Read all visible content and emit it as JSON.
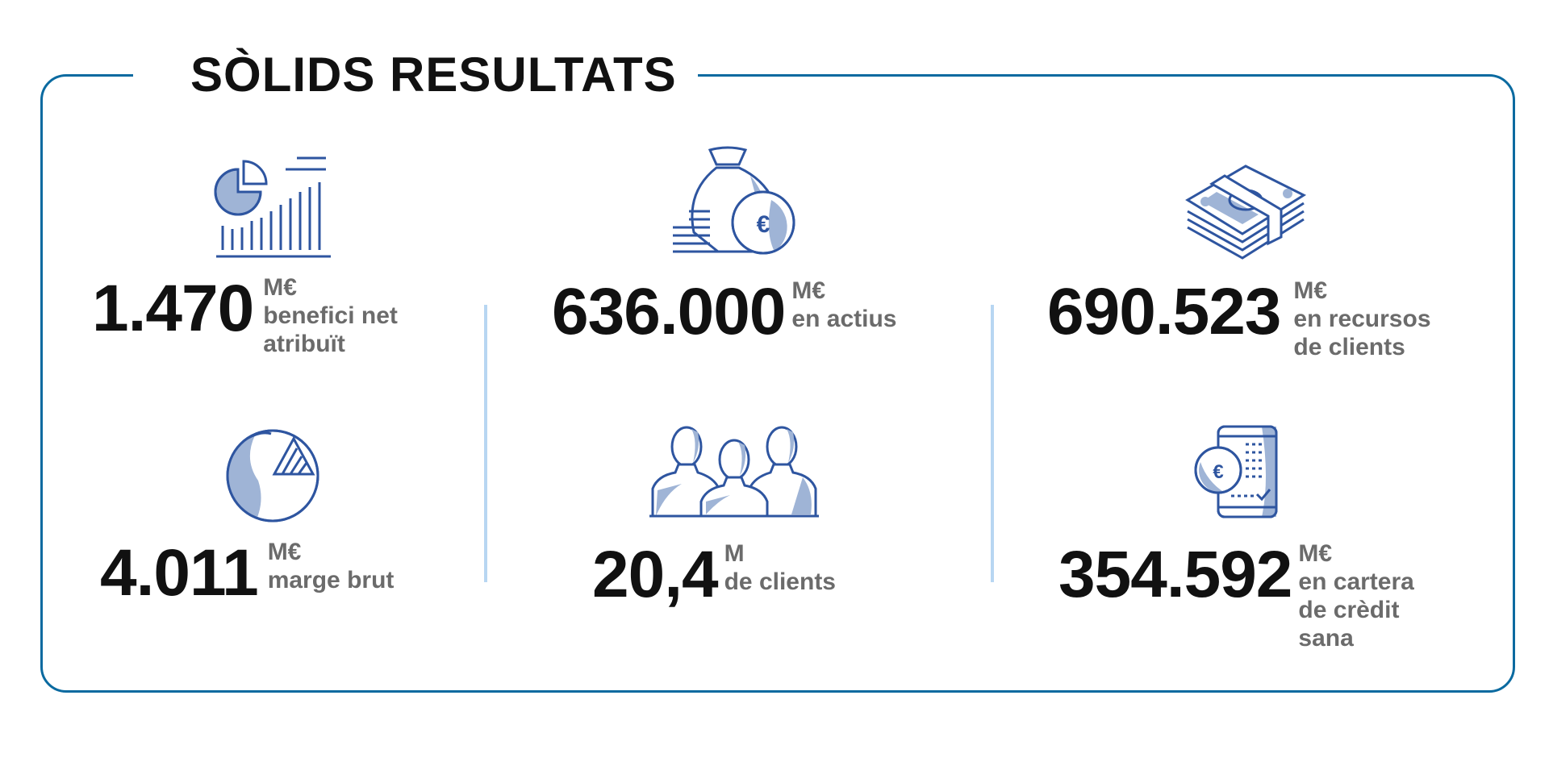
{
  "title": "SÒLIDS RESULTATS",
  "colors": {
    "border": "#0a6aa0",
    "icon_stroke": "#2e55a0",
    "icon_fill": "#9fb4d6",
    "divider": "#b8d6f2"
  },
  "kpis": [
    {
      "icon": "chart-icon",
      "value": "1.470",
      "unit": "M€",
      "desc": "benefici net\natribuït"
    },
    {
      "icon": "money-bag-icon",
      "value": "636.000",
      "unit": "M€",
      "desc": "en actius"
    },
    {
      "icon": "banknotes-icon",
      "value": "690.523",
      "unit": "M€",
      "desc": "en recursos\nde clients"
    },
    {
      "icon": "pie-margin-icon",
      "value": "4.011",
      "unit": "M€",
      "desc": "marge brut"
    },
    {
      "icon": "people-icon",
      "value": "20,4",
      "unit": "M",
      "desc": "de clients"
    },
    {
      "icon": "mobile-credit-icon",
      "value": "354.592",
      "unit": "M€",
      "desc": "en cartera\nde crèdit\nsana"
    }
  ]
}
